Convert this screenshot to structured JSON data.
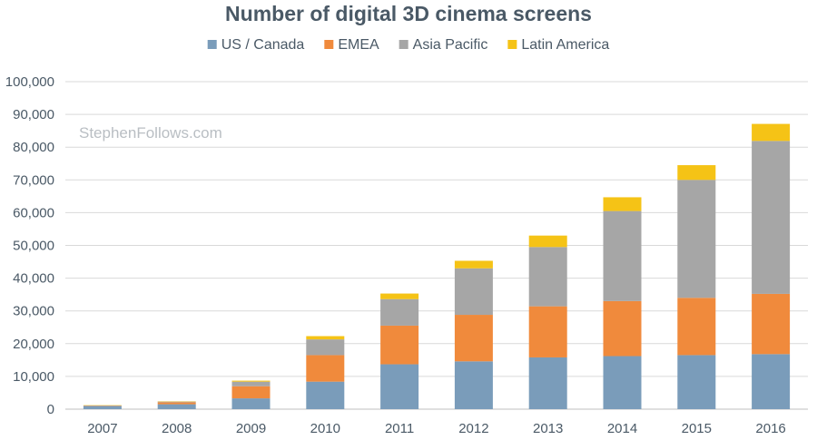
{
  "chart_data": {
    "type": "bar",
    "stacked": true,
    "title": "Number of digital 3D cinema screens",
    "watermark": "StephenFollows.com",
    "categories": [
      "2007",
      "2008",
      "2009",
      "2010",
      "2011",
      "2012",
      "2013",
      "2014",
      "2015",
      "2016"
    ],
    "series": [
      {
        "name": "US / Canada",
        "color": "#7a9cba",
        "values": [
          1000,
          1500,
          3300,
          8400,
          13700,
          14600,
          15800,
          16200,
          16500,
          16800
        ]
      },
      {
        "name": "EMEA",
        "color": "#f08a3c",
        "values": [
          100,
          600,
          3700,
          8100,
          11800,
          14200,
          15600,
          16800,
          17500,
          18400
        ]
      },
      {
        "name": "Asia Pacific",
        "color": "#a6a6a6",
        "values": [
          0,
          200,
          1400,
          4800,
          8100,
          14200,
          18100,
          27500,
          36000,
          46700
        ]
      },
      {
        "name": "Latin America",
        "color": "#f5c316",
        "values": [
          100,
          100,
          300,
          1000,
          1700,
          2300,
          3500,
          4200,
          4500,
          5200
        ]
      }
    ],
    "ylim": [
      0,
      100000
    ],
    "yticks": [
      0,
      10000,
      20000,
      30000,
      40000,
      50000,
      60000,
      70000,
      80000,
      90000,
      100000
    ],
    "ytick_labels": [
      "0",
      "10,000",
      "20,000",
      "30,000",
      "40,000",
      "50,000",
      "60,000",
      "70,000",
      "80,000",
      "90,000",
      "100,000"
    ],
    "legend_position": "top-center",
    "grid": true,
    "xlabel": "",
    "ylabel": ""
  }
}
